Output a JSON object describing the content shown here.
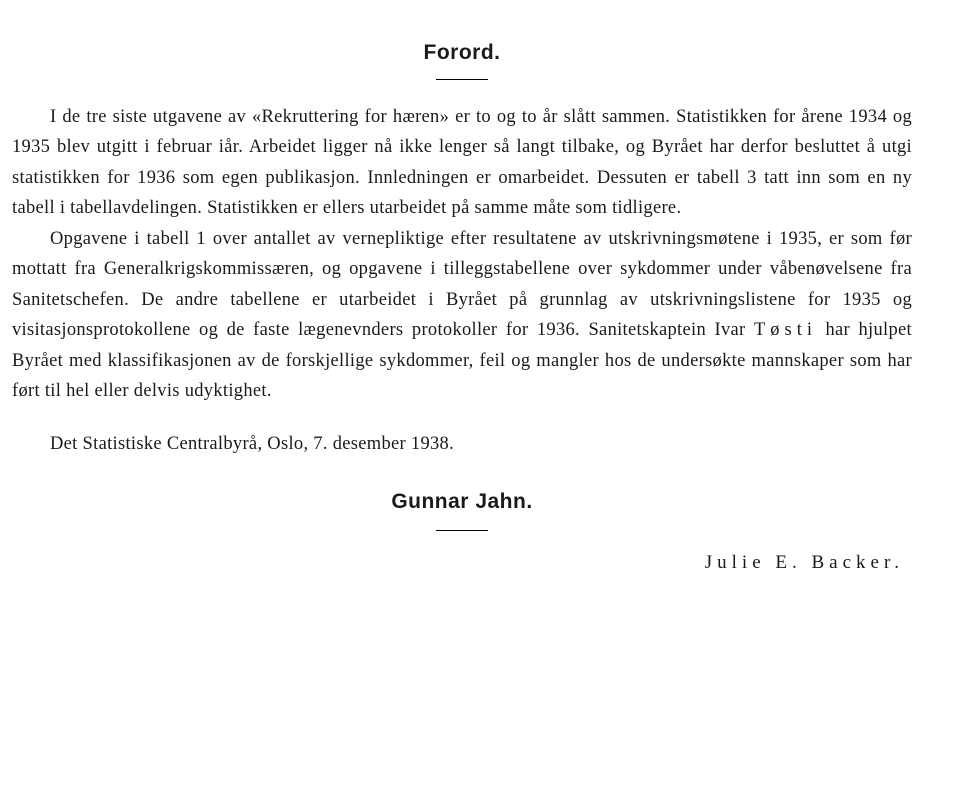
{
  "title": "Forord.",
  "paragraphs": {
    "p1": "I de tre siste utgavene av «Rekruttering for hæren» er to og to år slått sammen. Statistikken for årene 1934 og 1935 blev utgitt i februar iår. Arbeidet ligger nå ikke lenger så langt tilbake, og Byrået har derfor besluttet å utgi statistikken for 1936 som egen publikasjon. Innledningen er omarbeidet. Dessuten er tabell 3 tatt inn som en ny tabell i tabellavdelingen. Statistikken er ellers utarbeidet på samme måte som tidligere.",
    "p2_a": "Opgavene i tabell 1 over antallet av vernepliktige efter resultatene av utskrivningsmøtene i 1935, er som før mottatt fra Generalkrigskommissæren, og opgavene i tilleggstabellene over sykdommer under våbenøvelsene fra Sanitetschefen. De andre tabellene er utarbeidet i Byrået på grunnlag av utskrivningslistene for 1935 og visitasjonsprotokollene og de faste lægenevnders protokoller for 1936. Sanitetskaptein Ivar ",
    "p2_name": "Tøsti",
    "p2_b": " har hjulpet Byrået med klassifikasjonen av de forskjellige sykdommer, feil og mangler hos de undersøkte mannskaper som har ført til hel eller delvis udyktighet."
  },
  "closing": "Det Statistiske Centralbyrå, Oslo, 7. desember 1938.",
  "signature_main": "Gunnar Jahn.",
  "signature_secondary": "Julie E. Backer."
}
